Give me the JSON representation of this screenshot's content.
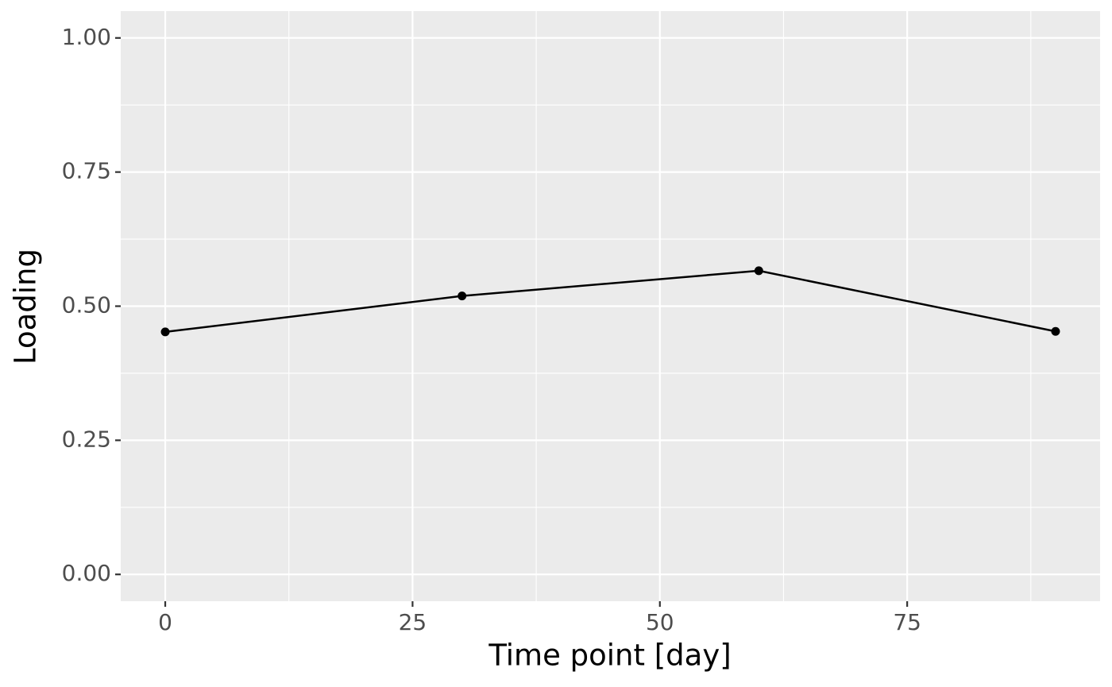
{
  "chart_data": {
    "type": "line",
    "x_label": "Time point [day]",
    "y_label": "Loading",
    "x": [
      0,
      30,
      60,
      90
    ],
    "series": [
      {
        "name": "Loading",
        "color": "#000000",
        "values": [
          0.452,
          0.519,
          0.566,
          0.453
        ]
      }
    ],
    "xlim": [
      -4.5,
      94.5
    ],
    "xticks": [
      0,
      25,
      50,
      75
    ],
    "ylim": [
      -0.05,
      1.05
    ],
    "yticks": [
      {
        "value": 0,
        "label": "0.00"
      },
      {
        "value": 0.25,
        "label": "0.25"
      },
      {
        "value": 0.5,
        "label": "0.50"
      },
      {
        "value": 0.75,
        "label": "0.75"
      },
      {
        "value": 1,
        "label": "1.00"
      }
    ],
    "grid": true
  }
}
